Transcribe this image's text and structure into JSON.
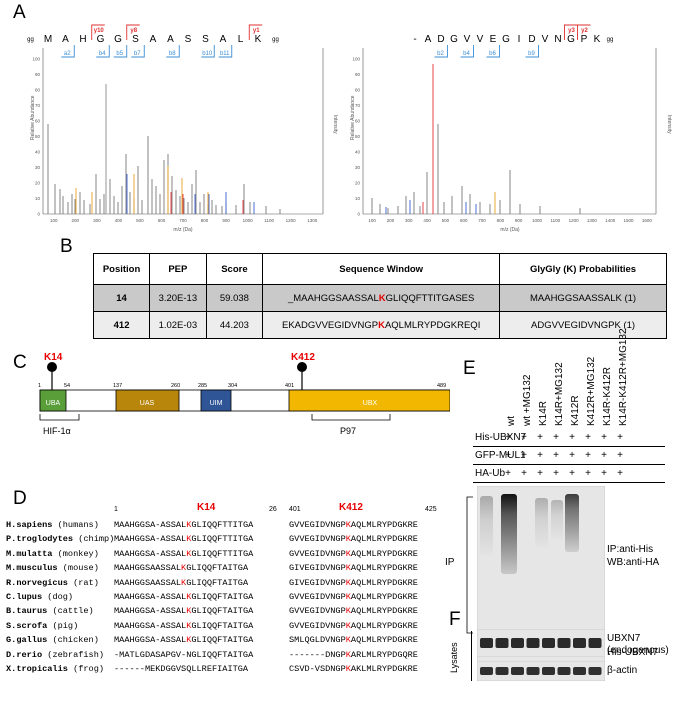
{
  "panels": {
    "a": "A",
    "b": "B",
    "c": "C",
    "d": "D",
    "e": "E",
    "f": "F"
  },
  "spectra": {
    "left": {
      "sequence": [
        "M",
        "A",
        "H",
        "G",
        "G",
        "S",
        "A",
        "A",
        "S",
        "S",
        "A",
        "L",
        "K"
      ],
      "prefix_mark": "gg",
      "suffix_mark": "gg",
      "y_ions": [
        "y10",
        "y8",
        "y1"
      ],
      "b_ions_top": [
        "a2"
      ],
      "b_ions": [
        "b4",
        "b5",
        "b7",
        "b8",
        "b10",
        "b11"
      ],
      "xlabel": "m/z (Da)",
      "ylabel": "Relative Abundance",
      "ylabel_right": "Intensity",
      "xticks": [
        "100",
        "200",
        "300",
        "400",
        "500",
        "600",
        "700",
        "800",
        "900",
        "1000",
        "1100",
        "1200",
        "1300"
      ],
      "yticks": [
        "0",
        "10",
        "20",
        "30",
        "40",
        "50",
        "60",
        "70",
        "80",
        "90",
        "100"
      ]
    },
    "right": {
      "sequence": [
        "-",
        "A",
        "D",
        "G",
        "V",
        "V",
        "E",
        "G",
        "I",
        "D",
        "V",
        "N",
        "G",
        "P",
        "K"
      ],
      "prefix_mark": "",
      "suffix_mark": "gg",
      "y_ions": [
        "y3",
        "y2"
      ],
      "b_ions": [
        "b2",
        "b4",
        "b6",
        "b9"
      ],
      "xlabel": "m/z (Da)",
      "ylabel": "Relative Abundance",
      "ylabel_right": "Intensity",
      "xticks": [
        "100",
        "200",
        "300",
        "400",
        "500",
        "600",
        "700",
        "800",
        "900",
        "1000",
        "1100",
        "1200",
        "1300",
        "1400",
        "1500",
        "1600"
      ],
      "yticks": [
        "0",
        "10",
        "20",
        "30",
        "40",
        "50",
        "60",
        "70",
        "80",
        "90",
        "100"
      ]
    }
  },
  "table": {
    "headers": [
      "Position",
      "PEP",
      "Score",
      "Sequence Window",
      "GlyGly (K) Probabilities"
    ],
    "rows": [
      {
        "position": "14",
        "pep": "3.20E-13",
        "score": "59.038",
        "window_pre": "_MAAHGGSAASSAL",
        "window_k": "K",
        "window_post": "GLIQQFTTITGASES",
        "prob": "MAAHGGSAASSALK (1)"
      },
      {
        "position": "412",
        "pep": "1.02E-03",
        "score": "44.203",
        "window_pre": "EKADGVVEGIDVNGP",
        "window_k": "K",
        "window_post": "AQLMLRYPDGKREQI",
        "prob": "ADGVVEGIDVNGPK (1)"
      }
    ]
  },
  "domain_map": {
    "k14": "K14",
    "k412": "K412",
    "ticks": [
      "1",
      "54",
      "137",
      "260",
      "285",
      "304",
      "401",
      "489"
    ],
    "domains": [
      {
        "name": "UBA",
        "color": "#5a9e3a"
      },
      {
        "name": "UAS",
        "color": "#b8860b"
      },
      {
        "name": "UIM",
        "color": "#2f5597"
      },
      {
        "name": "UBX",
        "color": "#f2b700"
      }
    ],
    "binding": [
      "HIF-1α",
      "P97"
    ]
  },
  "alignment": {
    "header_left_start": "1",
    "header_k14": "K14",
    "header_left_end": "26",
    "header_right_start": "401",
    "header_k412": "K412",
    "header_right_end": "425",
    "species": [
      {
        "name": "H.sapiens",
        "common": "(humans)",
        "left_pre": "MAAHGGSA-ASSAL",
        "left_k": "K",
        "left_post": "GLIQQFTTITGA",
        "right_pre": "GVVEGIDVNGP",
        "right_k": "K",
        "right_post": "AQLMLRYPDGKRE"
      },
      {
        "name": "P.troglodytes",
        "common": "(chimp)",
        "left_pre": "MAAHGGSA-ASSAL",
        "left_k": "K",
        "left_post": "GLIQQFTTITGA",
        "right_pre": "GVVEGIDVNGP",
        "right_k": "K",
        "right_post": "AQLMLRYPDGKRE"
      },
      {
        "name": "M.mulatta",
        "common": "(monkey)",
        "left_pre": "MAAHGGSA-ASSAL",
        "left_k": "K",
        "left_post": "GLIQQFTTITGA",
        "right_pre": "GVVEGIDVNGP",
        "right_k": "K",
        "right_post": "AQLMLRYPDGKRE"
      },
      {
        "name": "M.musculus",
        "common": "(mouse)",
        "left_pre": "MAAHGGSAASSAL",
        "left_k": "K",
        "left_post": "GLIQQFTAITGA",
        "right_pre": "GIVEGIDVNGP",
        "right_k": "K",
        "right_post": "AQLMLRYPDGKRE"
      },
      {
        "name": "R.norvegicus",
        "common": "(rat)",
        "left_pre": "MAAHGGSAASSAL",
        "left_k": "K",
        "left_post": "GLIQQFTAITGA",
        "right_pre": "GIVEGIDVNGP",
        "right_k": "K",
        "right_post": "AQLMLRYPDGKRE"
      },
      {
        "name": "C.lupus",
        "common": "(dog)",
        "left_pre": "MAAHGGSA-ASSAL",
        "left_k": "K",
        "left_post": "GLIQQFTAITGA",
        "right_pre": "GVVEGIDVNGP",
        "right_k": "K",
        "right_post": "AQLMLRYPDGKRE"
      },
      {
        "name": "B.taurus",
        "common": "(cattle)",
        "left_pre": "MAAHGGSA-ASSAL",
        "left_k": "K",
        "left_post": "GLIQQFTAITGA",
        "right_pre": "GVVEGIDVNGP",
        "right_k": "K",
        "right_post": "AQLMLRYPDGKRE"
      },
      {
        "name": "S.scrofa",
        "common": "(pig)",
        "left_pre": "MAAHGGSA-ASSAL",
        "left_k": "K",
        "left_post": "GLIQQFTAITGA",
        "right_pre": "GVVEGIDVNGP",
        "right_k": "K",
        "right_post": "AQLMLRYPDGKRE"
      },
      {
        "name": "G.gallus",
        "common": "(chicken)",
        "left_pre": "MAAHGGSA-ASSAL",
        "left_k": "K",
        "left_post": "GLIQQFTAITGA",
        "right_pre": "SMLQGLDVNGP",
        "right_k": "K",
        "right_post": "AQLMLRYPDGKRE"
      },
      {
        "name": "D.rerio",
        "common": "(zebrafish)",
        "left_pre": "-MATLGDASAPGV-NGL",
        "left_k": "",
        "left_post": "IQQFTAITGA",
        "right_pre": "-------DNGP",
        "right_k": "K",
        "right_post": "ARLMLRYPDGQRE"
      },
      {
        "name": "X.tropicalis",
        "common": "(frog)",
        "left_pre": "------MEKDGGVSQLL",
        "left_k": "",
        "left_post": "REFIAITGA",
        "right_pre": "CSVD-VSDNGP",
        "right_k": "K",
        "right_post": "AKLMLRYPDGKRE"
      }
    ]
  },
  "blot_e": {
    "row_labels": [
      "His-UBXN7",
      "GFP-MUL1",
      "HA-Ub"
    ],
    "lanes": [
      "wt",
      "wt +MG132",
      "K14R",
      "K14R+MG132",
      "K412R",
      "K412R+MG132",
      "K14R-K412R",
      "K14R-K412R+MG132"
    ],
    "his_row": [
      "-",
      "+",
      "+",
      "+",
      "+",
      "+",
      "+",
      "+",
      "+"
    ],
    "gfp_row": [
      "+",
      "+",
      "+",
      "+",
      "+",
      "+",
      "+",
      "+",
      "+"
    ],
    "ha_row": [
      "+",
      "+",
      "+",
      "+",
      "+",
      "+",
      "+",
      "+",
      "+"
    ],
    "ip_label": "IP",
    "ip_desc_1": "IP:anti-His",
    "ip_desc_2": "WB:anti-HA",
    "his_blot_label": "His-UBXN7"
  },
  "blot_f": {
    "side_label": "Lysates",
    "label_1a": "UBXN7",
    "label_1b": "(endogenous)",
    "label_2": "β-actin"
  }
}
